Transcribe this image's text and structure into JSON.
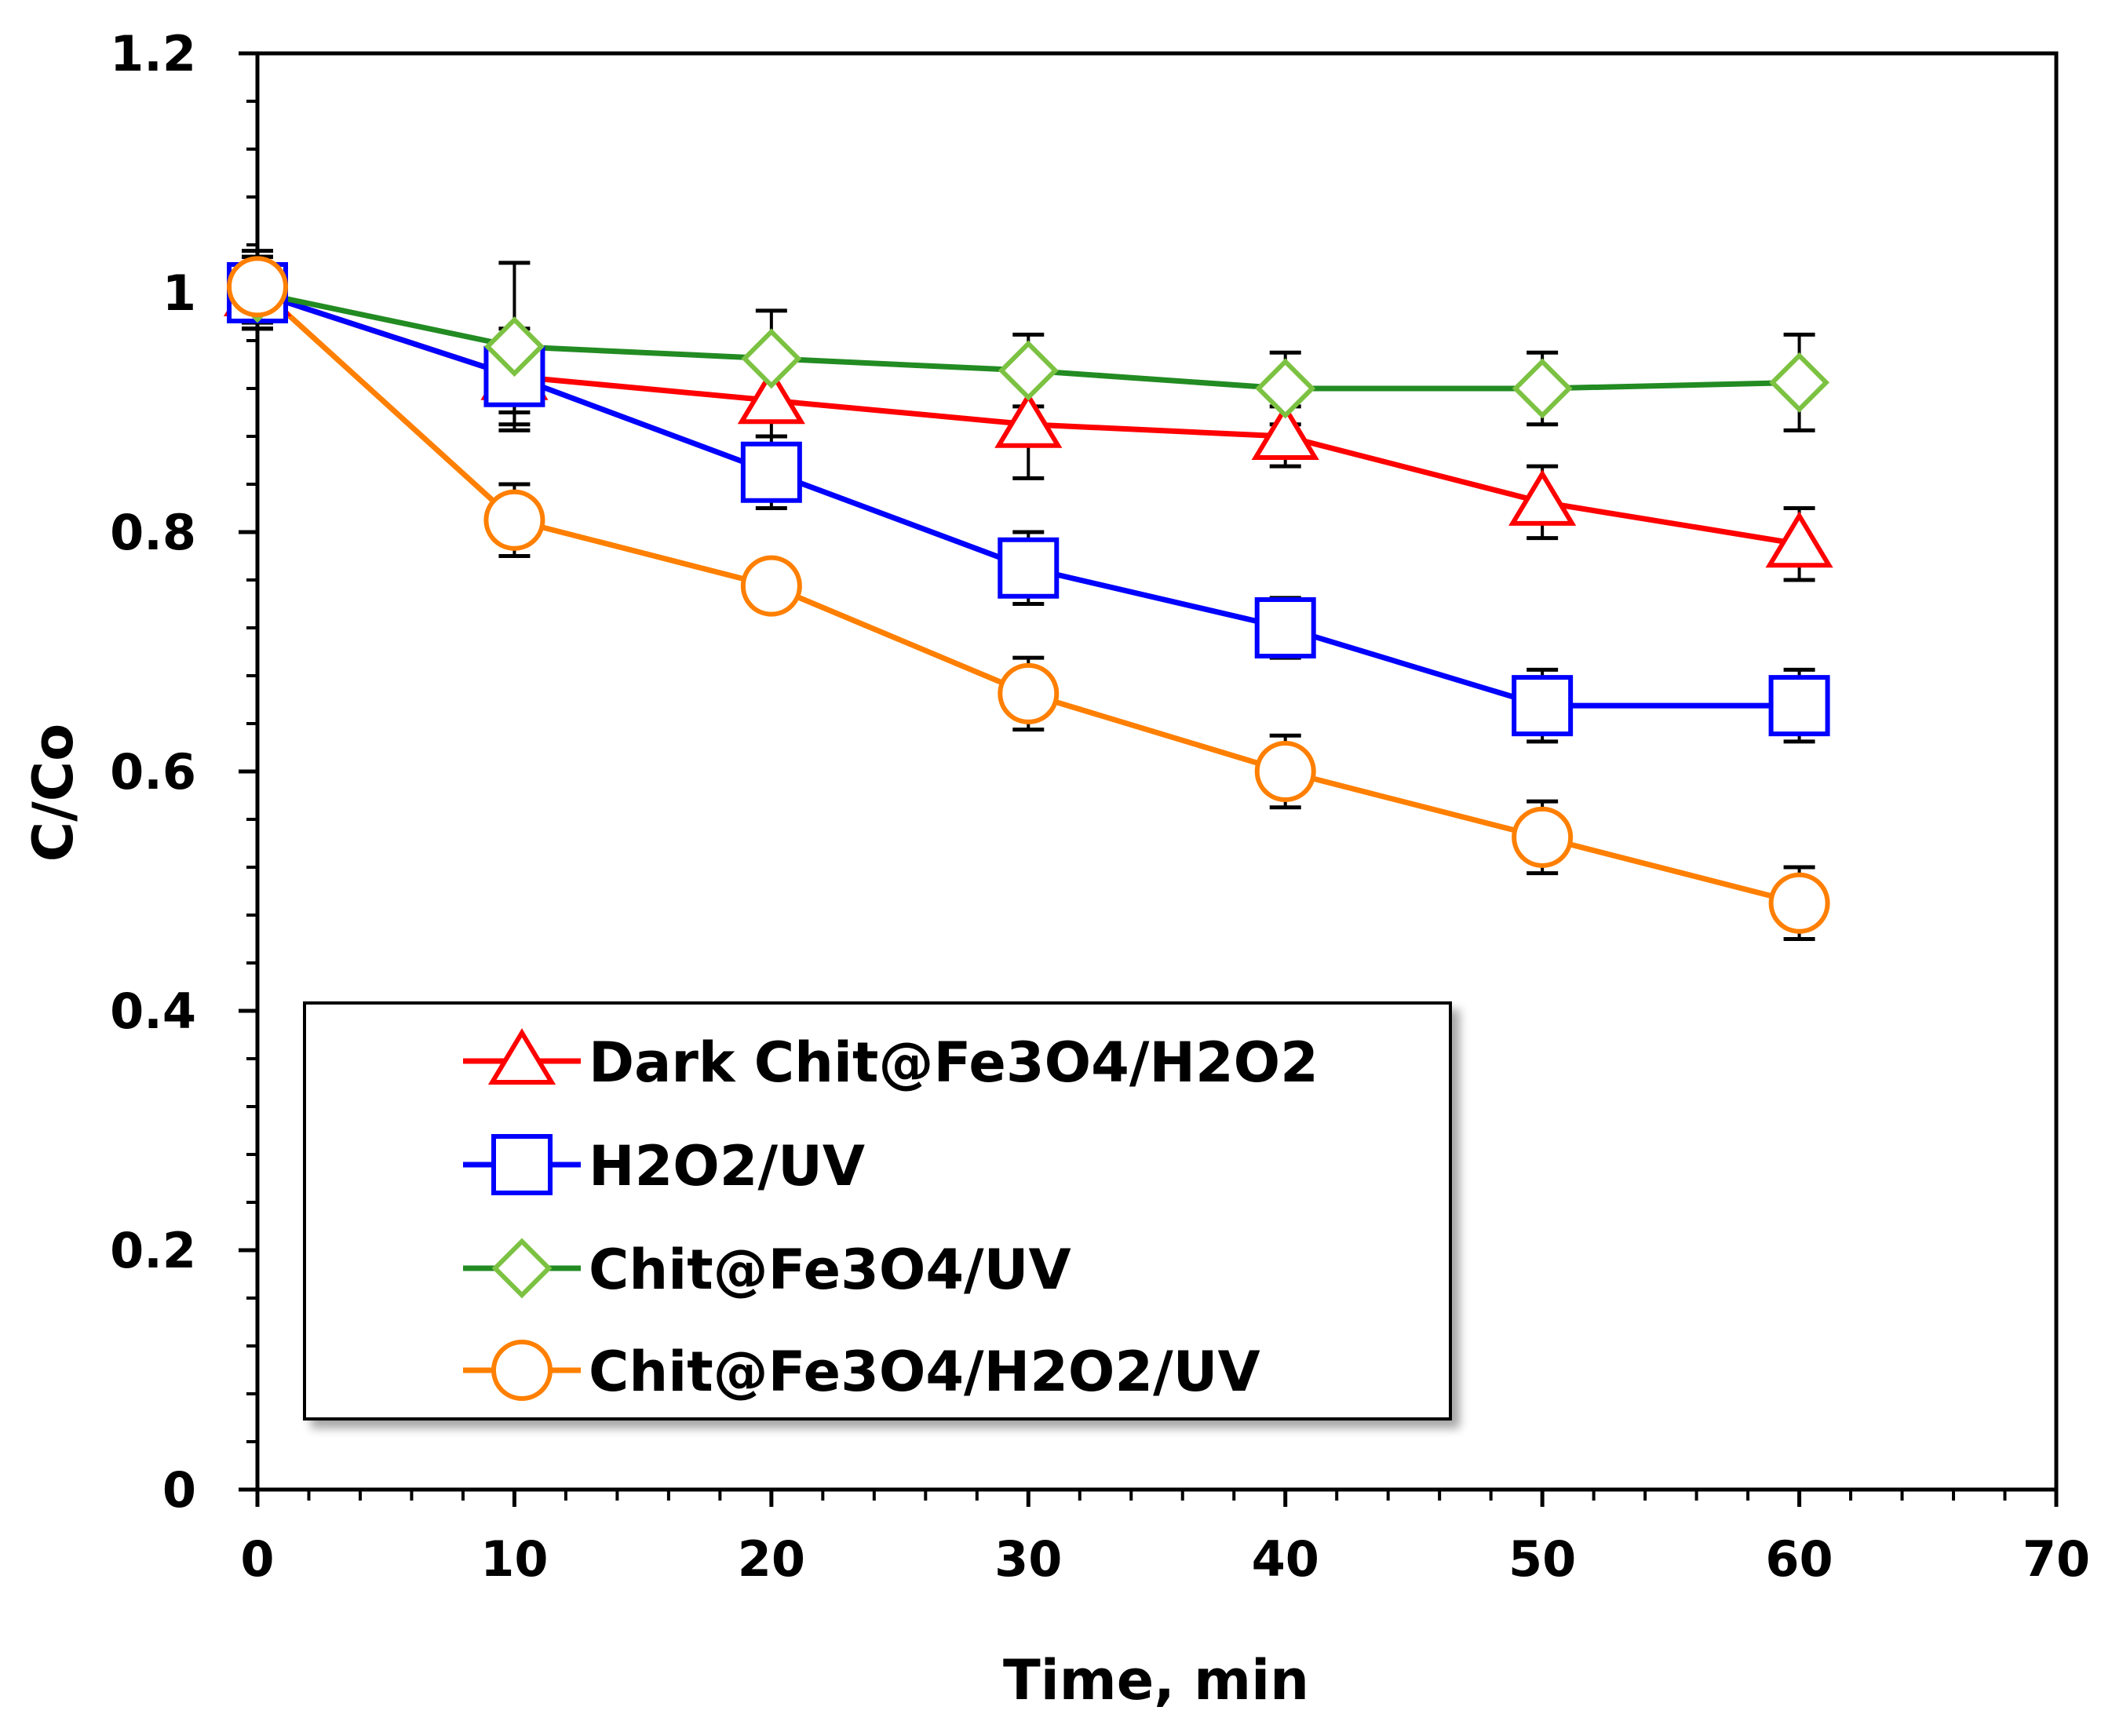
{
  "chart_data": {
    "type": "line",
    "title": "",
    "xlabel": "Time, min",
    "ylabel": "C/Co",
    "xlim": [
      0,
      70
    ],
    "ylim": [
      0,
      1.2
    ],
    "x_ticks": [
      0,
      10,
      20,
      30,
      40,
      50,
      60,
      70
    ],
    "x_tick_labels": [
      "0",
      "10",
      "20",
      "30",
      "40",
      "50",
      "60",
      "70"
    ],
    "y_ticks": [
      0,
      0.2,
      0.4,
      0.6,
      0.8,
      1,
      1.2
    ],
    "y_tick_labels": [
      "0",
      "0.2",
      "0.4",
      "0.6",
      "0.8",
      "1",
      "1.2"
    ],
    "grid": false,
    "legend_position": "bottom-left",
    "x": [
      0,
      10,
      20,
      30,
      40,
      50,
      60
    ],
    "series": [
      {
        "name": "Dark Chit@Fe3O4/H2O2",
        "color": "#ff0000",
        "marker": "triangle",
        "values": [
          1.0,
          0.93,
          0.91,
          0.89,
          0.88,
          0.825,
          0.79
        ],
        "errors": [
          0.03,
          0.03,
          0.03,
          0.045,
          0.025,
          0.03,
          0.03
        ]
      },
      {
        "name": "H2O2/UV",
        "color": "#0000ff",
        "marker": "square",
        "values": [
          1.0,
          0.93,
          0.85,
          0.77,
          0.72,
          0.655,
          0.655
        ],
        "errors": [
          0.03,
          0.04,
          0.03,
          0.03,
          0.025,
          0.03,
          0.03
        ]
      },
      {
        "name": "Chit@Fe3O4/UV",
        "color": "#228b22",
        "marker": "diamond",
        "values": [
          1.0,
          0.955,
          0.945,
          0.935,
          0.92,
          0.92,
          0.925
        ],
        "errors": [
          0.03,
          0.07,
          0.04,
          0.03,
          0.03,
          0.03,
          0.04
        ]
      },
      {
        "name": "Chit@Fe3O4/H2O2/UV",
        "color": "#ff7f00",
        "marker": "circle",
        "values": [
          1.005,
          0.81,
          0.755,
          0.665,
          0.6,
          0.545,
          0.49
        ],
        "errors": [
          0.03,
          0.03,
          0.02,
          0.03,
          0.03,
          0.03,
          0.03
        ]
      }
    ]
  }
}
